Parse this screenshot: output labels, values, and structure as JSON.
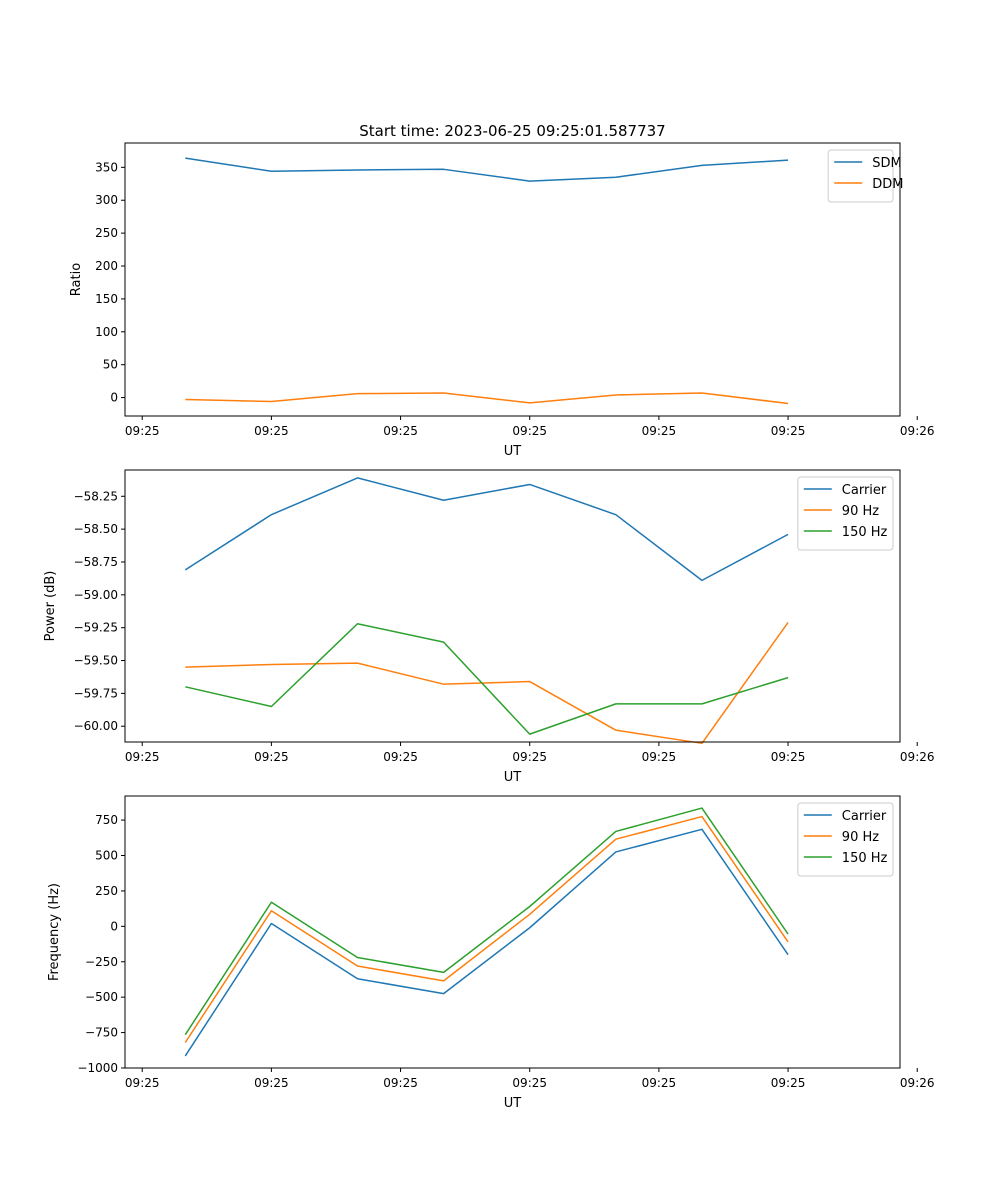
{
  "figure_title": "Start time: 2023-06-25 09:25:01.587737",
  "colors": {
    "blue": "#1f77b4",
    "orange": "#ff7f0e",
    "green": "#2ca02c"
  },
  "chart_data": [
    {
      "type": "line",
      "title": "Start time: 2023-06-25 09:25:01.587737",
      "xlabel": "UT",
      "ylabel": "Ratio",
      "x": [
        0,
        1,
        2,
        3,
        4,
        5,
        6,
        7
      ],
      "xlim": [
        -0.7,
        8.3
      ],
      "x_ticks": [
        -0.5,
        1,
        2.5,
        4,
        5.5,
        7,
        8.5
      ],
      "x_tick_labels": [
        "09:25",
        "09:25",
        "09:25",
        "09:25",
        "09:25",
        "09:25",
        "09:26"
      ],
      "ylim": [
        -28,
        387
      ],
      "y_ticks": [
        0,
        50,
        100,
        150,
        200,
        250,
        300,
        350
      ],
      "y_tick_labels": [
        "0",
        "50",
        "100",
        "150",
        "200",
        "250",
        "300",
        "350"
      ],
      "legend_position": "top-right",
      "series": [
        {
          "name": "SDM",
          "color": "#1f77b4",
          "values": [
            364,
            344,
            346,
            347,
            329,
            335,
            353,
            361
          ]
        },
        {
          "name": "DDM",
          "color": "#ff7f0e",
          "values": [
            -3,
            -6,
            6,
            7,
            -8,
            4,
            7,
            -9
          ]
        }
      ]
    },
    {
      "type": "line",
      "xlabel": "UT",
      "ylabel": "Power (dB)",
      "x": [
        0,
        1,
        2,
        3,
        4,
        5,
        6,
        7
      ],
      "xlim": [
        -0.7,
        8.3
      ],
      "x_ticks": [
        -0.5,
        1,
        2.5,
        4,
        5.5,
        7,
        8.5
      ],
      "x_tick_labels": [
        "09:25",
        "09:25",
        "09:25",
        "09:25",
        "09:25",
        "09:25",
        "09:26"
      ],
      "ylim": [
        -60.12,
        -58.05
      ],
      "y_ticks": [
        -60.0,
        -59.75,
        -59.5,
        -59.25,
        -59.0,
        -58.75,
        -58.5,
        -58.25
      ],
      "y_tick_labels": [
        "−60.00",
        "−59.75",
        "−59.50",
        "−59.25",
        "−59.00",
        "−58.75",
        "−58.50",
        "−58.25"
      ],
      "legend_position": "top-right",
      "series": [
        {
          "name": "Carrier",
          "color": "#1f77b4",
          "values": [
            -58.81,
            -58.39,
            -58.11,
            -58.28,
            -58.16,
            -58.39,
            -58.89,
            -58.54
          ]
        },
        {
          "name": "90 Hz",
          "color": "#ff7f0e",
          "values": [
            -59.55,
            -59.53,
            -59.52,
            -59.68,
            -59.66,
            -60.03,
            -60.13,
            -59.21
          ]
        },
        {
          "name": "150 Hz",
          "color": "#2ca02c",
          "values": [
            -59.7,
            -59.85,
            -59.22,
            -59.36,
            -60.06,
            -59.83,
            -59.83,
            -59.63
          ]
        }
      ]
    },
    {
      "type": "line",
      "xlabel": "UT",
      "ylabel": "Frequency (Hz)",
      "x": [
        0,
        1,
        2,
        3,
        4,
        5,
        6,
        7
      ],
      "xlim": [
        -0.7,
        8.3
      ],
      "x_ticks": [
        -0.5,
        1,
        2.5,
        4,
        5.5,
        7,
        8.5
      ],
      "x_tick_labels": [
        "09:25",
        "09:25",
        "09:25",
        "09:25",
        "09:25",
        "09:25",
        "09:26"
      ],
      "ylim": [
        -1000,
        920
      ],
      "y_ticks": [
        -1000,
        -750,
        -500,
        -250,
        0,
        250,
        500,
        750
      ],
      "y_tick_labels": [
        "−1000",
        "−750",
        "−500",
        "−250",
        "0",
        "250",
        "500",
        "750"
      ],
      "legend_position": "top-right",
      "series": [
        {
          "name": "Carrier",
          "color": "#1f77b4",
          "values": [
            -915,
            20,
            -370,
            -475,
            -10,
            525,
            685,
            -200
          ]
        },
        {
          "name": "90 Hz",
          "color": "#ff7f0e",
          "values": [
            -820,
            110,
            -280,
            -385,
            85,
            615,
            775,
            -110
          ]
        },
        {
          "name": "150 Hz",
          "color": "#2ca02c",
          "values": [
            -765,
            170,
            -220,
            -325,
            140,
            670,
            835,
            -55
          ]
        }
      ]
    }
  ]
}
